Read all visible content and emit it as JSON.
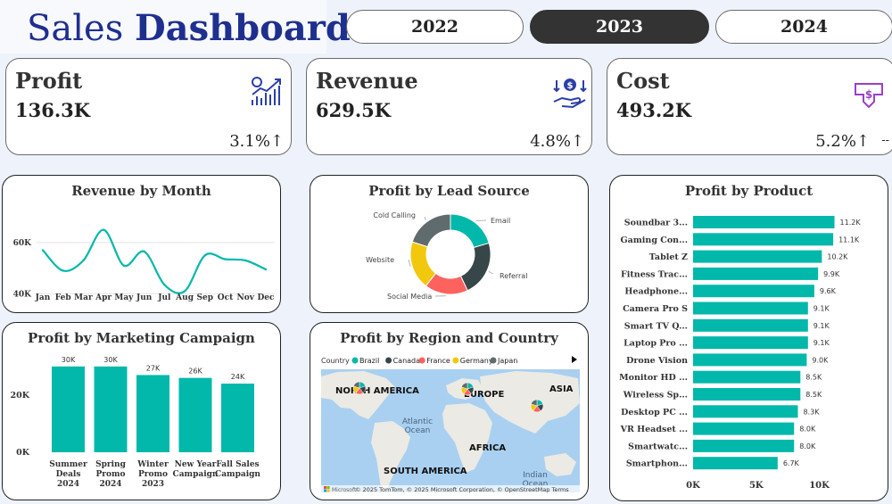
{
  "header": {
    "title_light": "Sales ",
    "title_bold": "Dashboard"
  },
  "year_filter": {
    "options": [
      "2022",
      "2023",
      "2024"
    ],
    "selected": "2023"
  },
  "kpis": [
    {
      "title": "Profit",
      "value": "136.3K",
      "delta": "3.1%↑",
      "icon": "growth-chart-icon"
    },
    {
      "title": "Revenue",
      "value": "629.5K",
      "delta": "4.8%↑",
      "icon": "money-hand-icon"
    },
    {
      "title": "Cost",
      "value": "493.2K",
      "delta": "5.2%↑",
      "icon": "cost-down-icon",
      "extra": "--"
    }
  ],
  "colors": {
    "accent": "#01b8aa",
    "dark": "#333333",
    "title_blue": "#1f2f8f",
    "line": "#01b8aa"
  },
  "chart_data": [
    {
      "type": "line",
      "title": "Revenue by Month",
      "categories": [
        "Jan",
        "Feb",
        "Mar",
        "Apr",
        "May",
        "Jun",
        "Jul",
        "Aug",
        "Sep",
        "Oct",
        "Nov",
        "Dec"
      ],
      "values": [
        57000,
        49000,
        53000,
        65000,
        51000,
        56500,
        43500,
        41000,
        55000,
        53500,
        53000,
        49500
      ],
      "yticks": [
        "60K",
        "40K"
      ],
      "ylim": [
        38000,
        68000
      ],
      "grid": true
    },
    {
      "type": "pie",
      "title": "Profit by Lead Source",
      "labels": [
        "Email",
        "Referral",
        "Social Media",
        "Website",
        "Cold Calling"
      ],
      "values": [
        20.5,
        22.5,
        17.5,
        19.5,
        20
      ],
      "colors": [
        "#01b8aa",
        "#374649",
        "#fd625e",
        "#f2c80f",
        "#5f6b6d"
      ],
      "donut": true
    },
    {
      "type": "bar",
      "title": "Profit by Marketing Campaign",
      "categories": [
        "Summer Deals 2024",
        "Spring Promo 2024",
        "Winter Promo 2023",
        "New Year Campaign",
        "Fall Sales Campaign"
      ],
      "category_lines": [
        [
          "Summer",
          "Deals",
          "2024"
        ],
        [
          "Spring",
          "Promo",
          "2024"
        ],
        [
          "Winter",
          "Promo",
          "2023"
        ],
        [
          "New Year",
          "Campaign"
        ],
        [
          "Fall Sales",
          "Campaign"
        ]
      ],
      "values": [
        30000,
        30000,
        27000,
        26000,
        24000
      ],
      "data_labels": [
        "30K",
        "30K",
        "27K",
        "26K",
        "24K"
      ],
      "yticks": [
        "20K",
        "0K"
      ],
      "ylim": [
        0,
        34000
      ]
    },
    {
      "type": "bar",
      "orientation": "horizontal",
      "title": "Profit by Product",
      "categories": [
        "Soundbar 3...",
        "Gaming Con...",
        "Tablet Z",
        "Fitness Trac...",
        "Headphone...",
        "Camera Pro S",
        "Smart TV Q...",
        "Laptop Pro ...",
        "Drone Vision",
        "Monitor HD ...",
        "Wireless Sp...",
        "Desktop PC ...",
        "VR Headset ...",
        "Smartwatc...",
        "Smartphon..."
      ],
      "values": [
        11200,
        11100,
        10200,
        9900,
        9600,
        9100,
        9100,
        9100,
        9000,
        8500,
        8500,
        8300,
        8000,
        8000,
        6700
      ],
      "data_labels": [
        "11.2K",
        "11.1K",
        "10.2K",
        "9.9K",
        "9.6K",
        "9.1K",
        "9.1K",
        "9.1K",
        "9.0K",
        "8.5K",
        "8.5K",
        "8.3K",
        "8.0K",
        "8.0K",
        "6.7K"
      ],
      "xticks": [
        "0K",
        "5K",
        "10K"
      ],
      "xlim": [
        0,
        13000
      ]
    }
  ],
  "map_panel": {
    "title": "Profit by Region and Country",
    "legend_title": "Country",
    "legend": [
      {
        "name": "Brazil",
        "color": "#01b8aa"
      },
      {
        "name": "Canada",
        "color": "#374649"
      },
      {
        "name": "France",
        "color": "#fd625e"
      },
      {
        "name": "Germany",
        "color": "#f2c80f"
      },
      {
        "name": "Japan",
        "color": "#5f6b6d"
      }
    ],
    "labels": [
      "NORTH AMERICA",
      "EUROPE",
      "ASIA",
      "AFRICA",
      "SOUTH AMERICA"
    ],
    "oceans": [
      "Atlantic",
      "Ocean",
      "Indian",
      "Ocean"
    ],
    "attribution": "© 2025 TomTom, © 2025 Microsoft Corporation, © OpenStreetMap Terms",
    "brand": "Microsoft"
  }
}
